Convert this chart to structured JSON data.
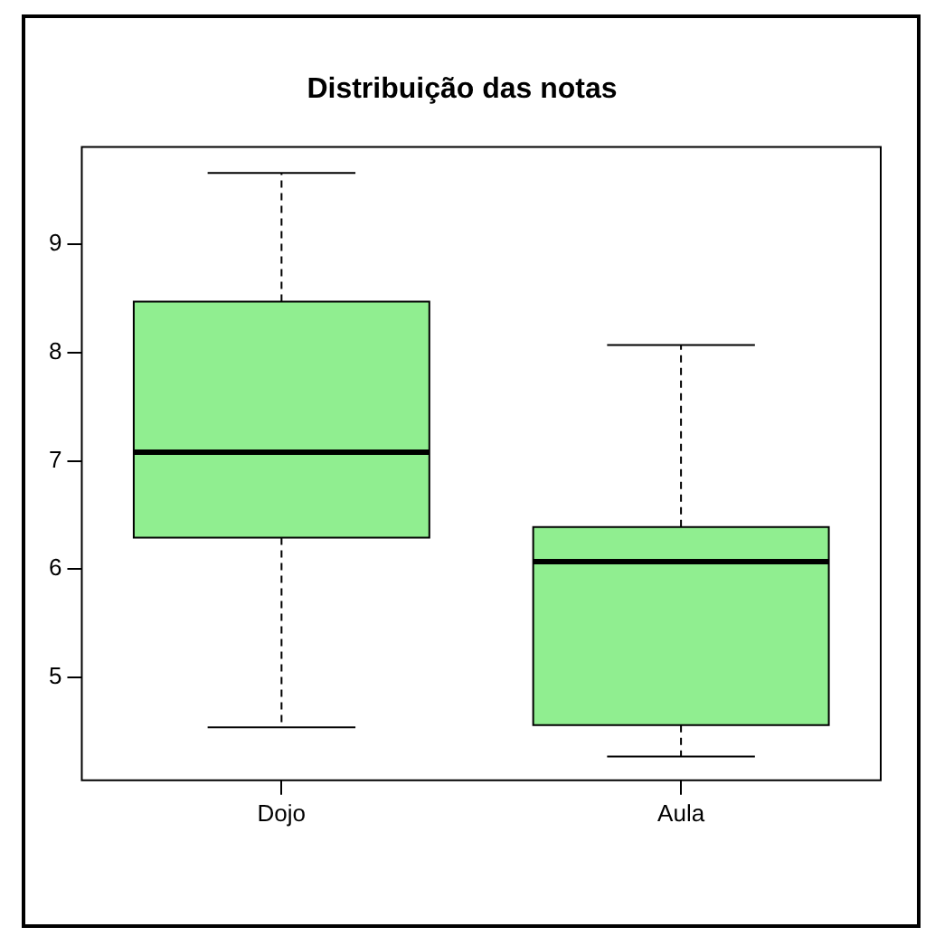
{
  "chart_data": {
    "type": "box",
    "title": "Distribuição das notas",
    "categories": [
      "Dojo",
      "Aula"
    ],
    "color": "#90ee90",
    "boxes": [
      {
        "low": 4.54,
        "q1": 6.29,
        "median": 7.08,
        "q3": 8.47,
        "high": 9.66
      },
      {
        "low": 4.27,
        "q1": 4.56,
        "median": 6.07,
        "q3": 6.39,
        "high": 8.07
      }
    ],
    "ylim": [
      4.05,
      9.9
    ],
    "yticks": [
      5,
      6,
      7,
      8,
      9
    ],
    "grid": false,
    "legend": false
  }
}
